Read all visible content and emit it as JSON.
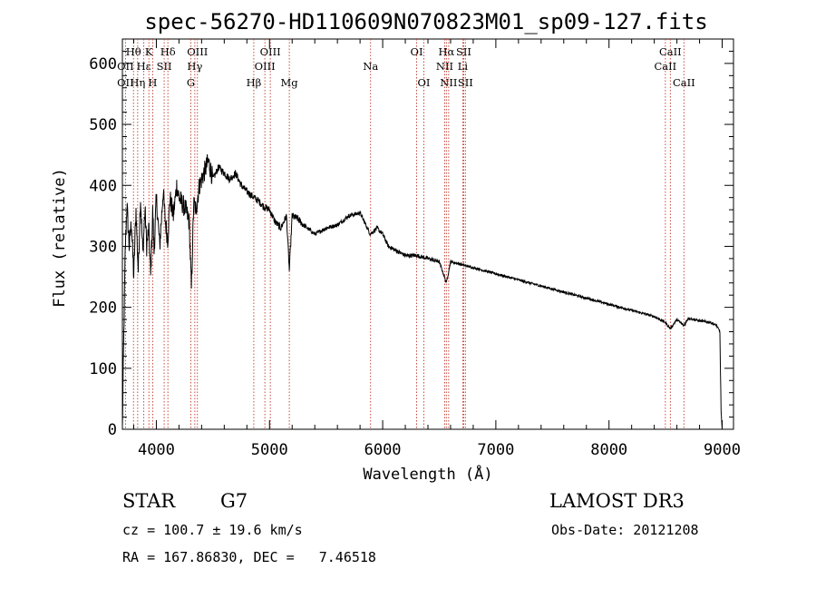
{
  "chart_data": {
    "type": "line",
    "title": "spec-56270-HD110609N070823M01_sp09-127.fits",
    "xlabel": "Wavelength (Å)",
    "ylabel": "Flux (relative)",
    "xlim": [
      3700,
      9100
    ],
    "ylim": [
      0,
      640
    ],
    "xticks": [
      4000,
      5000,
      6000,
      7000,
      8000,
      9000
    ],
    "yticks": [
      0,
      100,
      200,
      300,
      400,
      500,
      600
    ],
    "spectrum_anchors": {
      "x": [
        3700,
        3712,
        3725,
        3740,
        3760,
        3780,
        3800,
        3820,
        3840,
        3860,
        3880,
        3900,
        3915,
        3933,
        3950,
        3968,
        3980,
        4000,
        4030,
        4060,
        4080,
        4101,
        4120,
        4150,
        4180,
        4200,
        4230,
        4260,
        4290,
        4310,
        4330,
        4350,
        4380,
        4420,
        4460,
        4500,
        4550,
        4600,
        4650,
        4700,
        4750,
        4800,
        4861,
        4900,
        4950,
        5000,
        5050,
        5100,
        5150,
        5175,
        5200,
        5250,
        5300,
        5400,
        5500,
        5600,
        5700,
        5800,
        5890,
        5950,
        6000,
        6050,
        6100,
        6150,
        6200,
        6300,
        6400,
        6500,
        6563,
        6600,
        6700,
        6800,
        6900,
        7000,
        7100,
        7200,
        7300,
        7400,
        7500,
        7600,
        7700,
        7800,
        7900,
        8000,
        8100,
        8200,
        8300,
        8400,
        8498,
        8542,
        8600,
        8662,
        8700,
        8800,
        8900,
        8950,
        8980,
        8990,
        9000
      ],
      "y": [
        0,
        150,
        290,
        370,
        300,
        340,
        250,
        360,
        260,
        380,
        290,
        360,
        300,
        330,
        250,
        360,
        290,
        380,
        300,
        390,
        340,
        310,
        380,
        350,
        400,
        380,
        370,
        360,
        340,
        230,
        370,
        360,
        400,
        420,
        440,
        410,
        430,
        420,
        410,
        420,
        400,
        390,
        380,
        375,
        365,
        360,
        340,
        330,
        350,
        260,
        350,
        345,
        335,
        320,
        330,
        335,
        350,
        355,
        320,
        330,
        320,
        300,
        295,
        290,
        285,
        285,
        280,
        275,
        240,
        275,
        270,
        265,
        260,
        255,
        250,
        245,
        240,
        235,
        230,
        225,
        220,
        215,
        210,
        205,
        200,
        195,
        190,
        185,
        175,
        165,
        180,
        170,
        182,
        178,
        175,
        170,
        160,
        30,
        0
      ]
    },
    "spectral_lines": [
      {
        "label": "Hθ",
        "wavelength": 3798,
        "row": 1
      },
      {
        "label": "OII",
        "wavelength": 3727,
        "row": 2
      },
      {
        "label": "Hη",
        "wavelength": 3835,
        "row": 3
      },
      {
        "label": "OII",
        "wavelength": 3727,
        "row": 3
      },
      {
        "label": "Hε",
        "wavelength": 3889,
        "row": 2
      },
      {
        "label": "K",
        "wavelength": 3934,
        "row": 1
      },
      {
        "label": "H",
        "wavelength": 3968,
        "row": 3
      },
      {
        "label": "SII",
        "wavelength": 4069,
        "row": 2
      },
      {
        "label": "Hδ",
        "wavelength": 4102,
        "row": 1
      },
      {
        "label": "OIII",
        "wavelength": 4363,
        "row": 1
      },
      {
        "label": "Hγ",
        "wavelength": 4340,
        "row": 2
      },
      {
        "label": "G",
        "wavelength": 4305,
        "row": 3
      },
      {
        "label": "OIII",
        "wavelength": 5007,
        "row": 1
      },
      {
        "label": "OIII",
        "wavelength": 4959,
        "row": 2
      },
      {
        "label": "Hβ",
        "wavelength": 4861,
        "row": 3
      },
      {
        "label": "Mg",
        "wavelength": 5175,
        "row": 3
      },
      {
        "label": "Na",
        "wavelength": 5893,
        "row": 2
      },
      {
        "label": "OI",
        "wavelength": 6300,
        "row": 1
      },
      {
        "label": "OI",
        "wavelength": 6364,
        "row": 3
      },
      {
        "label": "Hα",
        "wavelength": 6563,
        "row": 1
      },
      {
        "label": "SII",
        "wavelength": 6716,
        "row": 1
      },
      {
        "label": "NII",
        "wavelength": 6548,
        "row": 2
      },
      {
        "label": "Li",
        "wavelength": 6708,
        "row": 2
      },
      {
        "label": "NII",
        "wavelength": 6583,
        "row": 3
      },
      {
        "label": "SII",
        "wavelength": 6731,
        "row": 3
      },
      {
        "label": "CaII",
        "wavelength": 8542,
        "row": 1
      },
      {
        "label": "CaII",
        "wavelength": 8498,
        "row": 2
      },
      {
        "label": "CaII",
        "wavelength": 8662,
        "row": 3
      }
    ]
  },
  "info": {
    "class_label": "STAR",
    "subclass": "G7",
    "survey": "LAMOST DR3",
    "cz": "cz = 100.7 ± 19.6 km/s",
    "obs_date": "Obs-Date: 20121208",
    "coords": "RA = 167.86830, DEC =   7.46518"
  },
  "colors": {
    "line_marker": "#c0392b",
    "spectrum": "#000000",
    "axis": "#000000"
  }
}
